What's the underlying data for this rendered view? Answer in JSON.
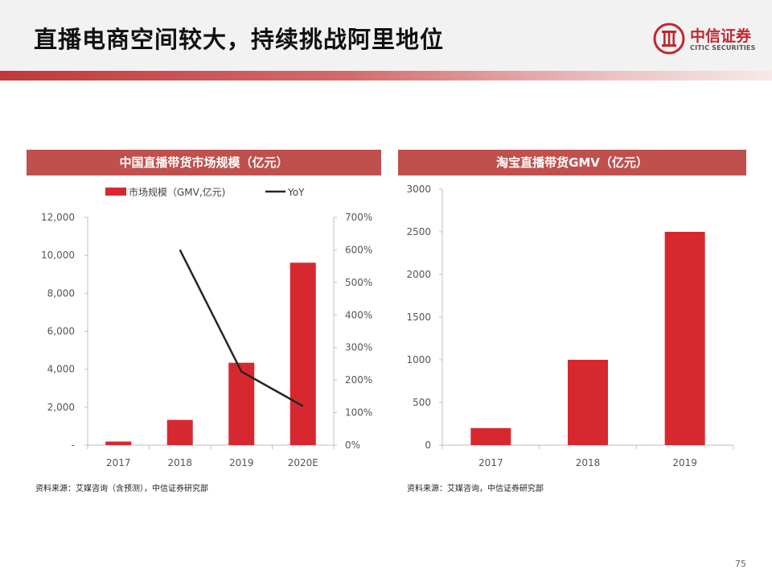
{
  "slide": {
    "title": "直播电商空间较大，持续挑战阿里地位",
    "page_number": "75"
  },
  "logo": {
    "name": "中信证券",
    "subtitle": "CITIC SECURITIES"
  },
  "colors": {
    "bar": "#d7282f",
    "line": "#262626",
    "panel_header": "#c0504d"
  },
  "left_panel": {
    "title": "中国直播带货市场规模（亿元）",
    "source": "资料来源：艾媒咨询（含预测），中信证券研究部"
  },
  "right_panel": {
    "title": "淘宝直播带货GMV（亿元）",
    "source": "资料来源：艾媒咨询，中信证券研究部"
  },
  "chart_data": [
    {
      "type": "bar",
      "categories": [
        "2017",
        "2018",
        "2019",
        "2020E"
      ],
      "series": [
        {
          "name": "市场规模（GMV,亿元)",
          "type": "bar",
          "axis": "left",
          "values": [
            190,
            1330,
            4340,
            9610
          ]
        },
        {
          "name": "YoY",
          "type": "line",
          "axis": "right",
          "values": [
            null,
            600,
            226,
            120
          ]
        }
      ],
      "y_left": {
        "ticks": [
          "-",
          "2,000",
          "4,000",
          "6,000",
          "8,000",
          "10,000",
          "12,000"
        ],
        "range": [
          0,
          12000
        ]
      },
      "y_right": {
        "ticks": [
          "0%",
          "100%",
          "200%",
          "300%",
          "400%",
          "500%",
          "600%",
          "700%"
        ],
        "range": [
          0,
          700
        ],
        "unit": "%"
      },
      "legend": "top-center",
      "grid": false
    },
    {
      "type": "bar",
      "categories": [
        "2017",
        "2018",
        "2019"
      ],
      "values": [
        200,
        1000,
        2500
      ],
      "ylim": [
        0,
        3000
      ],
      "y_ticks": [
        "0",
        "500",
        "1000",
        "1500",
        "2000",
        "2500",
        "3000"
      ],
      "grid": false
    }
  ]
}
